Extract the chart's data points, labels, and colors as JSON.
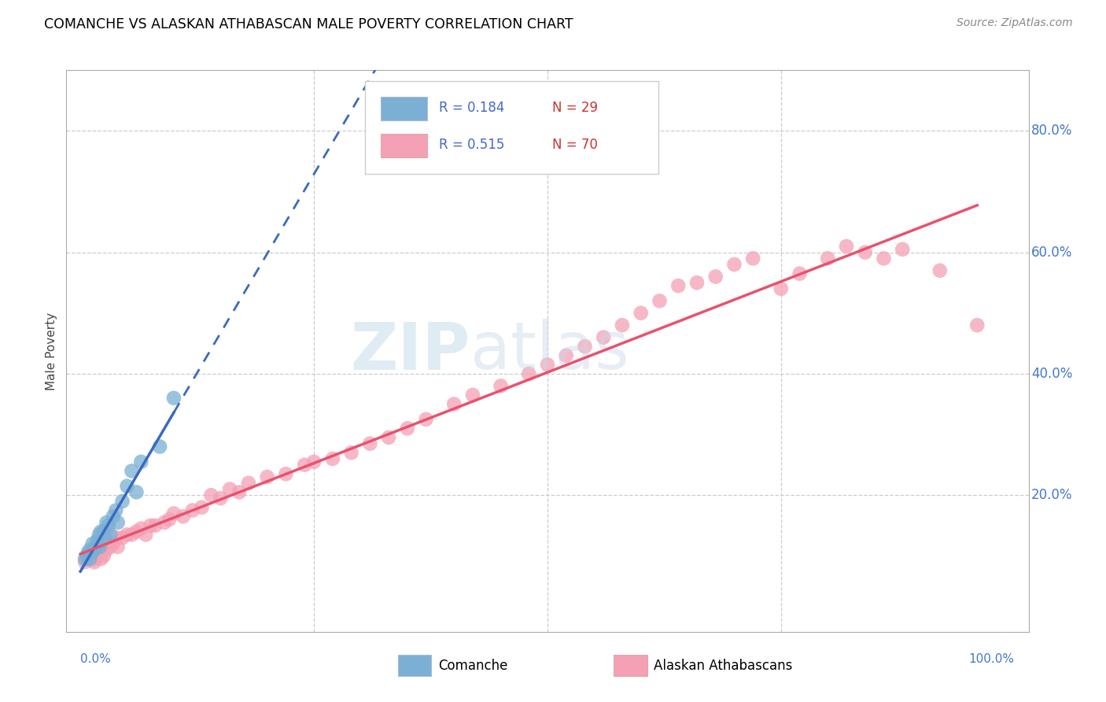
{
  "title": "COMANCHE VS ALASKAN ATHABASCAN MALE POVERTY CORRELATION CHART",
  "source": "Source: ZipAtlas.com",
  "ylabel": "Male Poverty",
  "comanche_color": "#7bafd4",
  "athabascan_color": "#f4a0b5",
  "comanche_line_color": "#3a6abf",
  "athabascan_line_color": "#e8526e",
  "r_comanche": "0.184",
  "n_comanche": "29",
  "r_athabascan": "0.515",
  "n_athabascan": "70",
  "comanche_x": [
    0.005,
    0.007,
    0.008,
    0.01,
    0.01,
    0.012,
    0.013,
    0.015,
    0.016,
    0.018,
    0.019,
    0.02,
    0.021,
    0.022,
    0.025,
    0.026,
    0.028,
    0.03,
    0.032,
    0.035,
    0.038,
    0.04,
    0.045,
    0.05,
    0.055,
    0.06,
    0.065,
    0.085,
    0.1
  ],
  "comanche_y": [
    0.095,
    0.1,
    0.105,
    0.095,
    0.11,
    0.105,
    0.12,
    0.11,
    0.115,
    0.125,
    0.12,
    0.135,
    0.115,
    0.14,
    0.14,
    0.13,
    0.155,
    0.15,
    0.135,
    0.165,
    0.175,
    0.155,
    0.19,
    0.215,
    0.24,
    0.205,
    0.255,
    0.28,
    0.36
  ],
  "athabascan_x": [
    0.005,
    0.008,
    0.01,
    0.012,
    0.015,
    0.016,
    0.018,
    0.02,
    0.022,
    0.025,
    0.028,
    0.03,
    0.032,
    0.035,
    0.038,
    0.04,
    0.045,
    0.05,
    0.055,
    0.06,
    0.065,
    0.07,
    0.075,
    0.08,
    0.09,
    0.095,
    0.1,
    0.11,
    0.12,
    0.13,
    0.14,
    0.15,
    0.16,
    0.17,
    0.18,
    0.2,
    0.22,
    0.24,
    0.25,
    0.27,
    0.29,
    0.31,
    0.33,
    0.35,
    0.37,
    0.4,
    0.42,
    0.45,
    0.48,
    0.5,
    0.52,
    0.54,
    0.56,
    0.58,
    0.6,
    0.62,
    0.64,
    0.66,
    0.68,
    0.7,
    0.72,
    0.75,
    0.77,
    0.8,
    0.82,
    0.84,
    0.86,
    0.88,
    0.92,
    0.96
  ],
  "athabascan_y": [
    0.09,
    0.095,
    0.095,
    0.1,
    0.09,
    0.095,
    0.1,
    0.105,
    0.095,
    0.1,
    0.11,
    0.12,
    0.115,
    0.12,
    0.13,
    0.115,
    0.13,
    0.135,
    0.135,
    0.14,
    0.145,
    0.135,
    0.15,
    0.15,
    0.155,
    0.16,
    0.17,
    0.165,
    0.175,
    0.18,
    0.2,
    0.195,
    0.21,
    0.205,
    0.22,
    0.23,
    0.235,
    0.25,
    0.255,
    0.26,
    0.27,
    0.285,
    0.295,
    0.31,
    0.325,
    0.35,
    0.365,
    0.38,
    0.4,
    0.415,
    0.43,
    0.445,
    0.46,
    0.48,
    0.5,
    0.52,
    0.545,
    0.55,
    0.56,
    0.58,
    0.59,
    0.54,
    0.565,
    0.59,
    0.61,
    0.6,
    0.59,
    0.605,
    0.57,
    0.48
  ],
  "xlim": [
    0.0,
    1.0
  ],
  "ylim": [
    0.0,
    0.9
  ],
  "yticks": [
    0.2,
    0.4,
    0.6,
    0.8
  ],
  "ytick_labels": [
    "20.0%",
    "40.0%",
    "60.0%",
    "80.0%"
  ]
}
